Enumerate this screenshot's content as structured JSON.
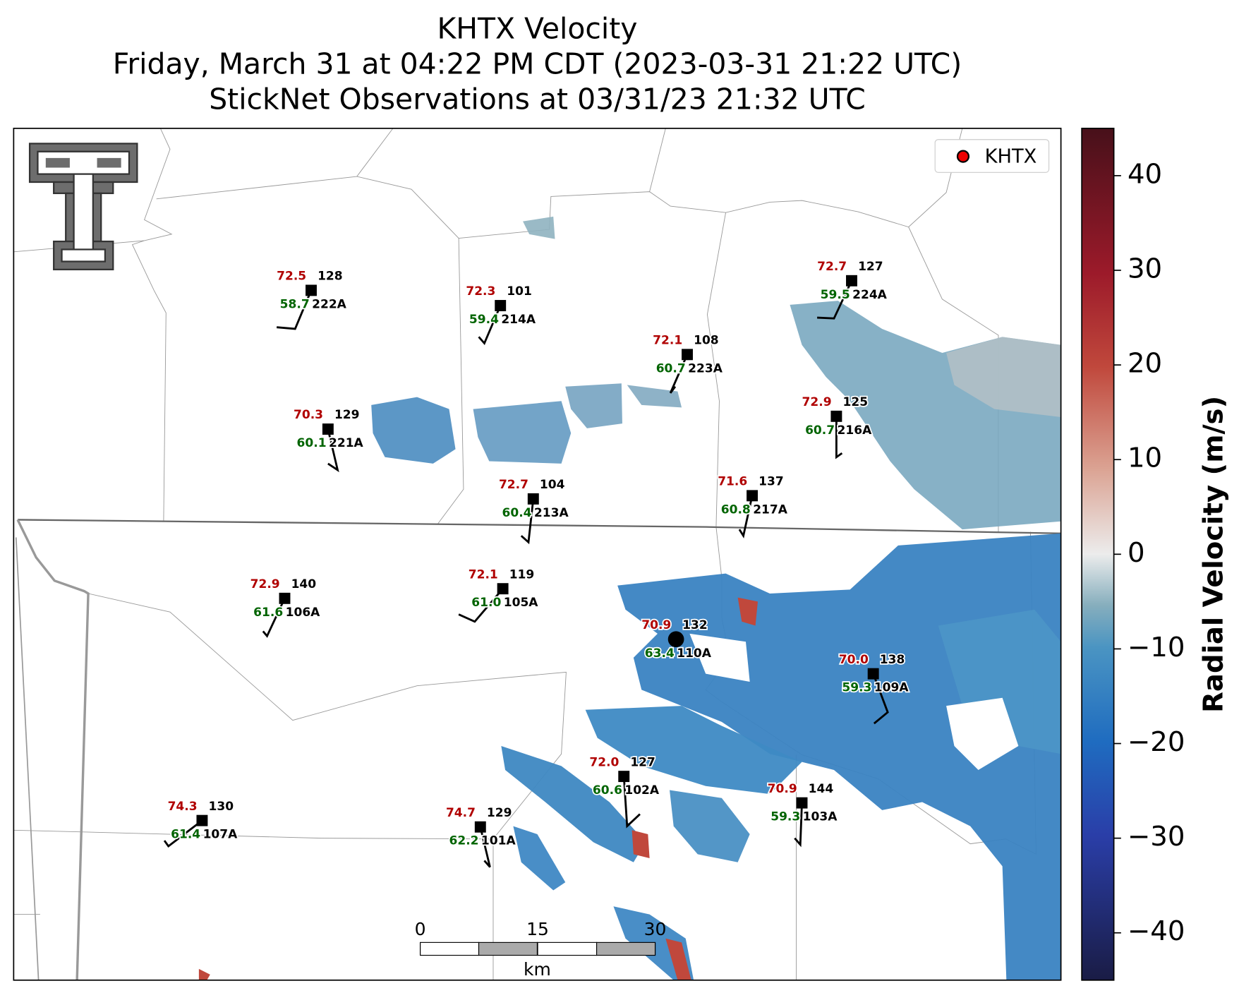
{
  "header": {
    "title": [
      "KHTX Velocity",
      "Friday, March 31 at 04:22 PM CDT (2023-03-31 21:22 UTC)",
      "StickNet Observations at 03/31/23 21:32 UTC"
    ]
  },
  "legend": {
    "label": "KHTX"
  },
  "stations": [
    {
      "id": "222A",
      "temperature": "72.5",
      "dewpoint": "58.7",
      "value": "128"
    },
    {
      "id": "214A",
      "temperature": "72.3",
      "dewpoint": "59.4",
      "value": "101"
    },
    {
      "id": "223A",
      "temperature": "72.1",
      "dewpoint": "60.7",
      "value": "108"
    },
    {
      "id": "224A",
      "temperature": "72.7",
      "dewpoint": "59.5",
      "value": "127"
    },
    {
      "id": "221A",
      "temperature": "70.3",
      "dewpoint": "60.1",
      "value": "129"
    },
    {
      "id": "216A",
      "temperature": "72.9",
      "dewpoint": "60.7",
      "value": "125"
    },
    {
      "id": "213A",
      "temperature": "72.7",
      "dewpoint": "60.4",
      "value": "104"
    },
    {
      "id": "217A",
      "temperature": "71.6",
      "dewpoint": "60.8",
      "value": "137"
    },
    {
      "id": "106A",
      "temperature": "72.9",
      "dewpoint": "61.6",
      "value": "140"
    },
    {
      "id": "105A",
      "temperature": "72.1",
      "dewpoint": "61.0",
      "value": "119"
    },
    {
      "id": "110A",
      "temperature": "70.9",
      "dewpoint": "63.4",
      "value": "132"
    },
    {
      "id": "109A",
      "temperature": "70.0",
      "dewpoint": "59.3",
      "value": "138"
    },
    {
      "id": "102A",
      "temperature": "72.0",
      "dewpoint": "60.6",
      "value": "127"
    },
    {
      "id": "103A",
      "temperature": "70.9",
      "dewpoint": "59.3",
      "value": "144"
    },
    {
      "id": "107A",
      "temperature": "74.3",
      "dewpoint": "61.4",
      "value": "130"
    },
    {
      "id": "101A",
      "temperature": "74.7",
      "dewpoint": "62.2",
      "value": "129"
    }
  ],
  "colorbar": {
    "label": "Radial Velocity (m/s)",
    "lim": [
      -45,
      45
    ],
    "ticks": [
      {
        "value": -40,
        "label": "−40"
      },
      {
        "value": -30,
        "label": "−30"
      },
      {
        "value": -20,
        "label": "−20"
      },
      {
        "value": -10,
        "label": "−10"
      },
      0,
      10,
      20,
      30,
      40
    ]
  },
  "scalebar": {
    "ticks": [
      0,
      15,
      30
    ],
    "unit": "km"
  }
}
